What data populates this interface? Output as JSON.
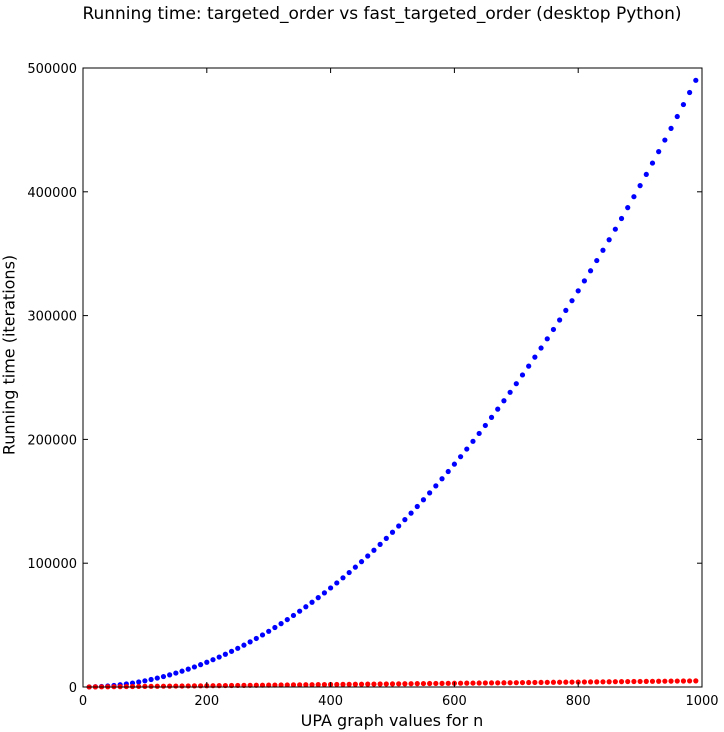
{
  "chart_data": {
    "type": "scatter",
    "title": "Running time: targeted_order vs fast_targeted_order (desktop Python)",
    "xlabel": "UPA graph values for n",
    "ylabel": "Running time (iterations)",
    "xlim": [
      0,
      1000
    ],
    "ylim": [
      0,
      500000
    ],
    "xticks": [
      0,
      200,
      400,
      600,
      800,
      1000
    ],
    "yticks": [
      0,
      100000,
      200000,
      300000,
      400000,
      500000
    ],
    "xticklabels": [
      "0",
      "200",
      "400",
      "600",
      "800",
      "1000"
    ],
    "yticklabels": [
      "0",
      "100000",
      "200000",
      "300000",
      "400000",
      "500000"
    ],
    "grid": false,
    "x": [
      10,
      20,
      30,
      40,
      50,
      60,
      70,
      80,
      90,
      100,
      110,
      120,
      130,
      140,
      150,
      160,
      170,
      180,
      190,
      200,
      210,
      220,
      230,
      240,
      250,
      260,
      270,
      280,
      290,
      300,
      310,
      320,
      330,
      340,
      350,
      360,
      370,
      380,
      390,
      400,
      410,
      420,
      430,
      440,
      450,
      460,
      470,
      480,
      490,
      500,
      510,
      520,
      530,
      540,
      550,
      560,
      570,
      580,
      590,
      600,
      610,
      620,
      630,
      640,
      650,
      660,
      670,
      680,
      690,
      700,
      710,
      720,
      730,
      740,
      750,
      760,
      770,
      780,
      790,
      800,
      810,
      820,
      830,
      840,
      850,
      860,
      870,
      880,
      890,
      900,
      910,
      920,
      930,
      940,
      950,
      960,
      970,
      980,
      990
    ],
    "series": [
      {
        "color": "#0000ff",
        "values": [
          50,
          200,
          450,
          800,
          1250,
          1800,
          2450,
          3200,
          4050,
          5000,
          6050,
          7200,
          8450,
          9800,
          11250,
          12800,
          14450,
          16200,
          18050,
          20000,
          22050,
          24200,
          26450,
          28800,
          31250,
          33800,
          36450,
          39200,
          42050,
          45000,
          48050,
          51200,
          54450,
          57800,
          61250,
          64800,
          68450,
          72200,
          76050,
          80000,
          84050,
          88200,
          92450,
          96800,
          101250,
          105800,
          110450,
          115200,
          120050,
          125000,
          130050,
          135200,
          140450,
          145800,
          151250,
          156800,
          162450,
          168200,
          174050,
          180000,
          186050,
          192200,
          198450,
          204800,
          211250,
          217800,
          224450,
          231200,
          238050,
          245000,
          252050,
          259200,
          266450,
          273800,
          281250,
          288800,
          296450,
          304200,
          312050,
          320000,
          328050,
          336200,
          344450,
          352800,
          361250,
          369800,
          378450,
          387200,
          396050,
          405000,
          414050,
          423200,
          432450,
          441800,
          451250,
          460800,
          470450,
          480200,
          490050
        ]
      },
      {
        "color": "#ff0000",
        "values": [
          40,
          90,
          140,
          190,
          240,
          290,
          340,
          390,
          440,
          500,
          560,
          610,
          660,
          710,
          760,
          810,
          860,
          910,
          960,
          1000,
          1060,
          1110,
          1160,
          1210,
          1260,
          1310,
          1360,
          1410,
          1460,
          1500,
          1560,
          1610,
          1660,
          1710,
          1760,
          1810,
          1860,
          1910,
          1960,
          2000,
          2060,
          2110,
          2160,
          2210,
          2260,
          2310,
          2360,
          2410,
          2460,
          2500,
          2560,
          2610,
          2660,
          2710,
          2760,
          2810,
          2860,
          2910,
          2960,
          3000,
          3060,
          3110,
          3160,
          3210,
          3260,
          3310,
          3360,
          3410,
          3460,
          3500,
          3560,
          3610,
          3660,
          3710,
          3760,
          3810,
          3860,
          3910,
          3960,
          4000,
          4060,
          4110,
          4160,
          4210,
          4260,
          4310,
          4360,
          4410,
          4460,
          4500,
          4560,
          4610,
          4660,
          4710,
          4760,
          4810,
          4860,
          4910,
          4960
        ]
      }
    ]
  }
}
